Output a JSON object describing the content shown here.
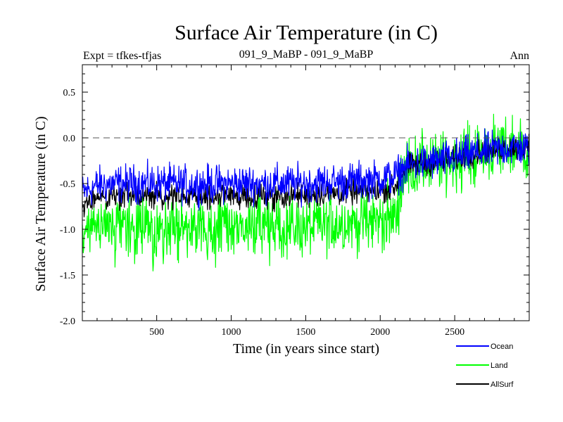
{
  "chart_data": {
    "type": "line",
    "title": "Surface Air Temperature (in C)",
    "subtitle_left": "Expt = tfkes-tfjas",
    "subtitle_center": "091_9_MaBP - 091_9_MaBP",
    "subtitle_right": "Ann",
    "xlabel": "Time (in years since start)",
    "ylabel": "Surface Air Temperature (in C)",
    "xlim": [
      1,
      3000
    ],
    "ylim": [
      -2.0,
      0.8
    ],
    "xticks": [
      500,
      1000,
      1500,
      2000,
      2500
    ],
    "yticks": [
      -2.0,
      -1.5,
      -1.0,
      -0.5,
      0.0,
      0.5
    ],
    "ytick_labels": [
      "-2.0",
      "-1.5",
      "-1.0",
      "-0.5",
      "0.0",
      "0.5"
    ],
    "reference_line": {
      "y": 0.0,
      "style": "dashed"
    },
    "legend_position": "bottom-right, outside plot",
    "series": [
      {
        "name": "Ocean",
        "color": "#0000ff",
        "x": [
          1,
          100,
          250,
          500,
          750,
          1000,
          1250,
          1500,
          1750,
          2000,
          2100,
          2150,
          2200,
          2300,
          2400,
          2500,
          2600,
          2700,
          2800,
          2900,
          3000
        ],
        "y": [
          -0.6,
          -0.52,
          -0.5,
          -0.5,
          -0.51,
          -0.5,
          -0.5,
          -0.5,
          -0.48,
          -0.45,
          -0.42,
          -0.35,
          -0.3,
          -0.27,
          -0.25,
          -0.22,
          -0.18,
          -0.15,
          -0.12,
          -0.1,
          -0.12
        ],
        "noise": 0.1
      },
      {
        "name": "Land",
        "color": "#00ff00",
        "x": [
          1,
          100,
          250,
          500,
          750,
          1000,
          1250,
          1500,
          1750,
          2000,
          2100,
          2150,
          2200,
          2300,
          2400,
          2500,
          2600,
          2700,
          2800,
          2900,
          3000
        ],
        "y": [
          -1.1,
          -1.0,
          -0.98,
          -1.0,
          -1.0,
          -0.98,
          -0.98,
          -0.98,
          -0.93,
          -0.9,
          -0.88,
          -0.4,
          -0.32,
          -0.3,
          -0.28,
          -0.25,
          -0.2,
          -0.15,
          -0.12,
          -0.1,
          -0.12
        ],
        "noise": 0.17
      },
      {
        "name": "AllSurf",
        "color": "#000000",
        "x": [
          1,
          100,
          250,
          500,
          750,
          1000,
          1250,
          1500,
          1750,
          2000,
          2100,
          2150,
          2200,
          2300,
          2400,
          2500,
          2600,
          2700,
          2800,
          2900,
          3000
        ],
        "y": [
          -0.75,
          -0.65,
          -0.63,
          -0.64,
          -0.65,
          -0.64,
          -0.64,
          -0.63,
          -0.6,
          -0.57,
          -0.55,
          -0.36,
          -0.3,
          -0.28,
          -0.26,
          -0.23,
          -0.19,
          -0.15,
          -0.12,
          -0.1,
          -0.12
        ],
        "noise": 0.065
      }
    ]
  }
}
